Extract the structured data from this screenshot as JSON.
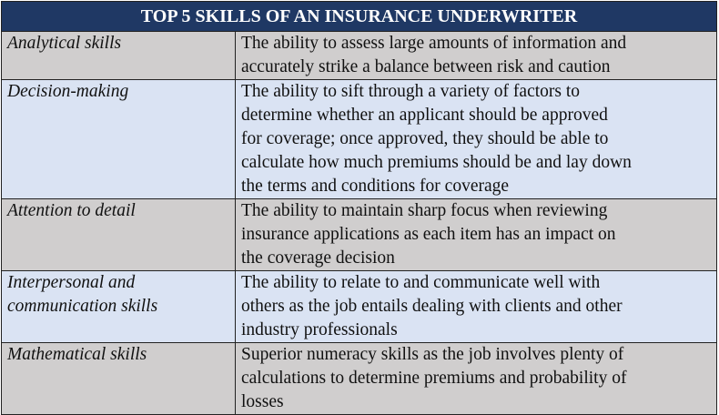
{
  "title": "TOP 5 SKILLS OF AN INSURANCE UNDERWRITER",
  "colors": {
    "header": "#1f3864",
    "row_gray": "#d0cece",
    "row_blue": "#dae3f3"
  },
  "rows": [
    {
      "skill": [
        "Analytical skills"
      ],
      "description": [
        "The ability to assess large amounts of information and",
        "accurately strike a balance between risk and caution"
      ]
    },
    {
      "skill": [
        "Decision-making"
      ],
      "description": [
        "The ability to sift through a variety of factors to",
        "determine whether an applicant should be approved",
        "for coverage; once approved, they should be able to",
        "calculate how much premiums should be and lay down",
        "the terms and conditions for coverage"
      ]
    },
    {
      "skill": [
        "Attention to detail"
      ],
      "description": [
        "The ability to maintain sharp focus when reviewing",
        "insurance applications as each item has an impact on",
        "the coverage decision"
      ]
    },
    {
      "skill": [
        "Interpersonal and",
        "communication skills"
      ],
      "description": [
        "The ability to relate to and communicate well with",
        "others as the job entails dealing with clients and other",
        "industry professionals"
      ]
    },
    {
      "skill": [
        "Mathematical skills"
      ],
      "description": [
        "Superior numeracy skills as the job involves plenty of",
        "calculations to determine premiums and probability of",
        "losses"
      ]
    }
  ]
}
